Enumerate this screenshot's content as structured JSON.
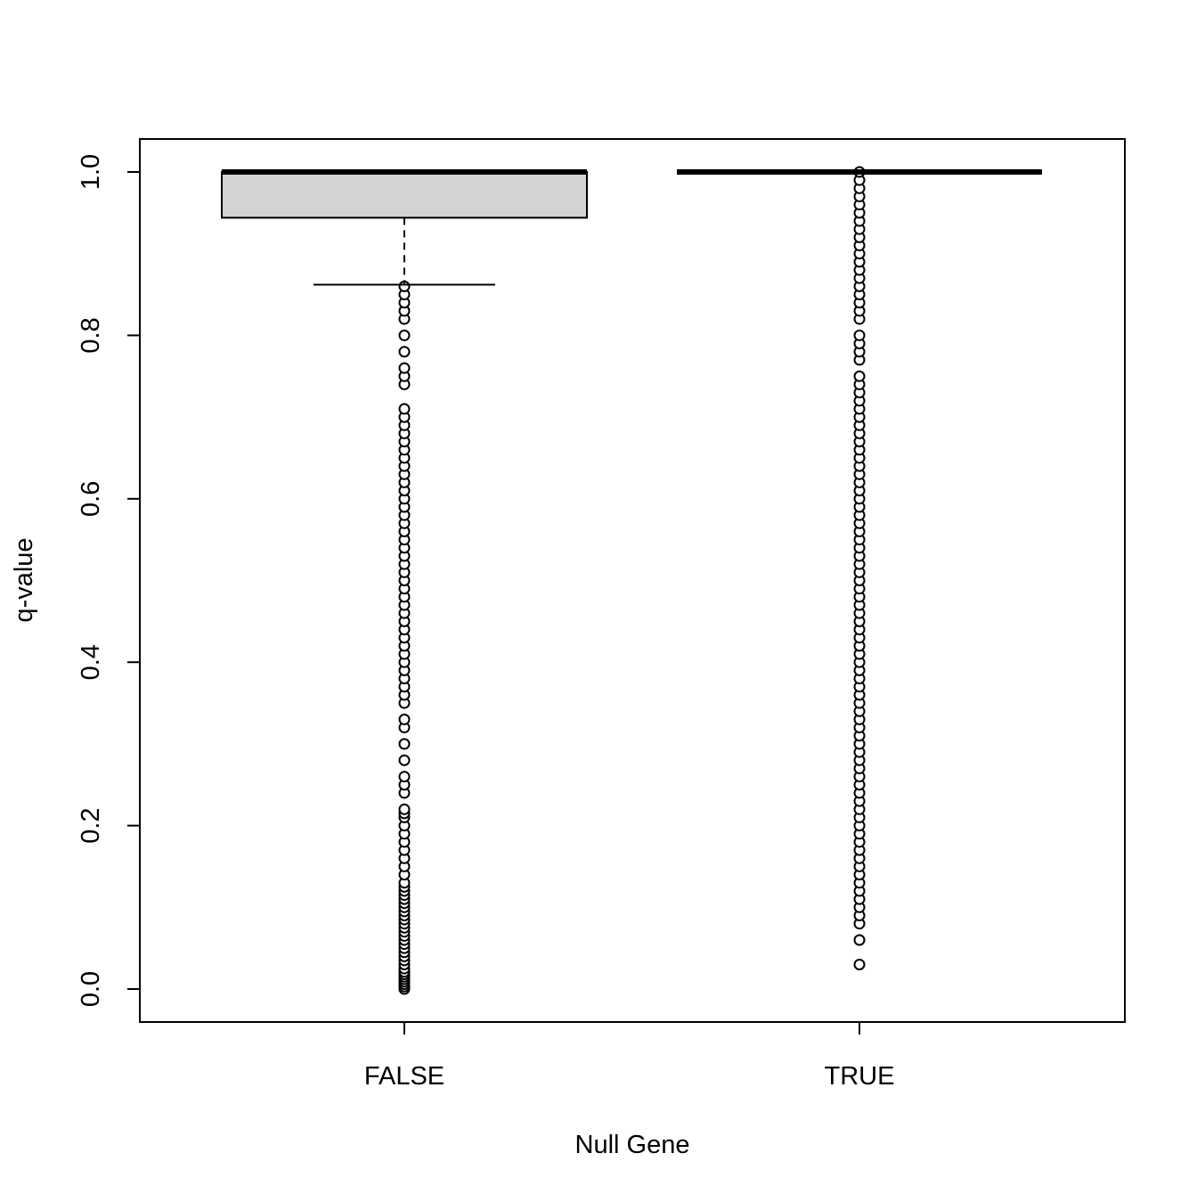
{
  "chart_data": {
    "type": "boxplot",
    "title": "",
    "xlabel": "Null Gene",
    "ylabel": "q-value",
    "ylim": [
      -0.04,
      1.04
    ],
    "yticks": [
      0.0,
      0.2,
      0.4,
      0.6,
      0.8,
      1.0
    ],
    "ytick_labels": [
      "0.0",
      "0.2",
      "0.4",
      "0.6",
      "0.8",
      "1.0"
    ],
    "categories": [
      "FALSE",
      "TRUE"
    ],
    "boxes": [
      {
        "name": "FALSE",
        "q1": 0.944,
        "median": 1.0,
        "q3": 1.0,
        "whisker_low": 0.862,
        "whisker_high": 1.0,
        "fill": "#d3d3d3",
        "outliers": [
          0.0,
          0.003,
          0.006,
          0.009,
          0.012,
          0.015,
          0.018,
          0.021,
          0.025,
          0.03,
          0.035,
          0.04,
          0.045,
          0.05,
          0.055,
          0.06,
          0.065,
          0.07,
          0.075,
          0.08,
          0.085,
          0.09,
          0.095,
          0.1,
          0.105,
          0.11,
          0.115,
          0.12,
          0.125,
          0.13,
          0.14,
          0.15,
          0.16,
          0.17,
          0.18,
          0.19,
          0.2,
          0.21,
          0.215,
          0.22,
          0.24,
          0.25,
          0.26,
          0.28,
          0.3,
          0.32,
          0.33,
          0.35,
          0.36,
          0.37,
          0.38,
          0.39,
          0.4,
          0.41,
          0.42,
          0.43,
          0.44,
          0.45,
          0.46,
          0.47,
          0.48,
          0.49,
          0.5,
          0.51,
          0.52,
          0.53,
          0.54,
          0.55,
          0.56,
          0.57,
          0.58,
          0.59,
          0.6,
          0.61,
          0.62,
          0.63,
          0.64,
          0.65,
          0.66,
          0.67,
          0.68,
          0.69,
          0.7,
          0.71,
          0.74,
          0.75,
          0.76,
          0.78,
          0.8,
          0.82,
          0.83,
          0.84,
          0.85,
          0.86
        ]
      },
      {
        "name": "TRUE",
        "q1": 1.0,
        "median": 1.0,
        "q3": 1.0,
        "whisker_low": 1.0,
        "whisker_high": 1.0,
        "fill": "#d3d3d3",
        "outliers": [
          0.03,
          0.06,
          0.08,
          0.09,
          0.1,
          0.11,
          0.12,
          0.13,
          0.14,
          0.15,
          0.16,
          0.17,
          0.18,
          0.19,
          0.2,
          0.21,
          0.22,
          0.23,
          0.24,
          0.25,
          0.26,
          0.27,
          0.28,
          0.29,
          0.3,
          0.31,
          0.32,
          0.33,
          0.34,
          0.35,
          0.36,
          0.37,
          0.38,
          0.39,
          0.4,
          0.41,
          0.42,
          0.43,
          0.44,
          0.45,
          0.46,
          0.47,
          0.48,
          0.49,
          0.5,
          0.51,
          0.52,
          0.53,
          0.54,
          0.55,
          0.56,
          0.57,
          0.58,
          0.59,
          0.6,
          0.61,
          0.62,
          0.63,
          0.64,
          0.65,
          0.66,
          0.67,
          0.68,
          0.69,
          0.7,
          0.71,
          0.72,
          0.73,
          0.74,
          0.75,
          0.77,
          0.78,
          0.79,
          0.8,
          0.82,
          0.83,
          0.84,
          0.85,
          0.86,
          0.87,
          0.88,
          0.89,
          0.9,
          0.91,
          0.92,
          0.93,
          0.94,
          0.95,
          0.96,
          0.97,
          0.98,
          0.99,
          1.0
        ]
      }
    ],
    "grid": false,
    "legend": "none"
  }
}
